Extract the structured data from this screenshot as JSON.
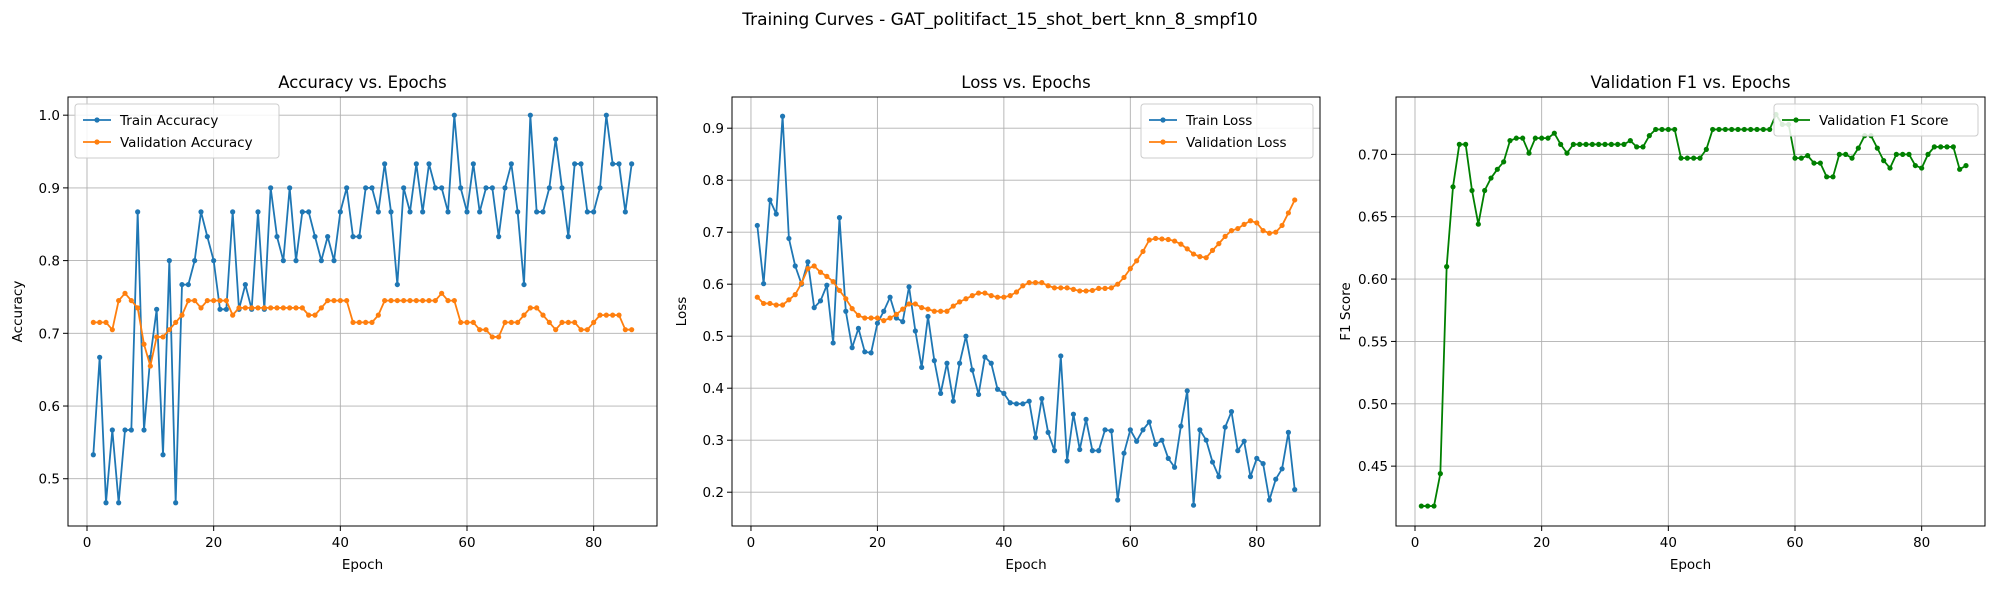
{
  "suptitle": "Training Curves - GAT_politifact_15_shot_bert_knn_8_smpf10",
  "colors": {
    "train": "#1f77b4",
    "validation": "#ff7f0e",
    "f1": "#008000"
  },
  "chart_data": [
    {
      "type": "line",
      "title": "Accuracy vs. Epochs",
      "xlabel": "Epoch",
      "ylabel": "Accuracy",
      "xlim": [
        -3,
        90
      ],
      "ylim": [
        0.435,
        1.025
      ],
      "xticks": [
        0,
        20,
        40,
        60,
        80
      ],
      "yticks": [
        0.5,
        0.6,
        0.7,
        0.8,
        0.9,
        1.0
      ],
      "ytick_labels": [
        "0.5",
        "0.6",
        "0.7",
        "0.8",
        "0.9",
        "1.0"
      ],
      "grid": true,
      "legend_position": "top-left",
      "series": [
        {
          "name": "Train Accuracy",
          "color": "#1f77b4",
          "values": [
            0.533,
            0.667,
            0.467,
            0.567,
            0.467,
            0.567,
            0.567,
            0.867,
            0.567,
            0.667,
            0.733,
            0.533,
            0.8,
            0.467,
            0.767,
            0.767,
            0.8,
            0.867,
            0.833,
            0.8,
            0.733,
            0.733,
            0.867,
            0.733,
            0.767,
            0.733,
            0.867,
            0.733,
            0.9,
            0.833,
            0.8,
            0.9,
            0.8,
            0.867,
            0.867,
            0.833,
            0.8,
            0.833,
            0.8,
            0.867,
            0.9,
            0.833,
            0.833,
            0.9,
            0.9,
            0.867,
            0.933,
            0.867,
            0.767,
            0.9,
            0.867,
            0.933,
            0.867,
            0.933,
            0.9,
            0.9,
            0.867,
            1.0,
            0.9,
            0.867,
            0.933,
            0.867,
            0.9,
            0.9,
            0.833,
            0.9,
            0.933,
            0.867,
            0.767,
            1.0,
            0.867,
            0.867,
            0.9,
            0.967,
            0.9,
            0.833,
            0.933,
            0.933,
            0.867,
            0.867,
            0.9,
            1.0,
            0.933,
            0.933,
            0.867,
            0.933
          ]
        },
        {
          "name": "Validation Accuracy",
          "color": "#ff7f0e",
          "values": [
            0.715,
            0.715,
            0.715,
            0.705,
            0.745,
            0.755,
            0.745,
            0.735,
            0.685,
            0.655,
            0.695,
            0.695,
            0.705,
            0.715,
            0.725,
            0.745,
            0.745,
            0.735,
            0.745,
            0.745,
            0.745,
            0.745,
            0.725,
            0.735,
            0.735,
            0.735,
            0.735,
            0.735,
            0.735,
            0.735,
            0.735,
            0.735,
            0.735,
            0.735,
            0.725,
            0.725,
            0.735,
            0.745,
            0.745,
            0.745,
            0.745,
            0.715,
            0.715,
            0.715,
            0.715,
            0.725,
            0.745,
            0.745,
            0.745,
            0.745,
            0.745,
            0.745,
            0.745,
            0.745,
            0.745,
            0.755,
            0.745,
            0.745,
            0.715,
            0.715,
            0.715,
            0.705,
            0.705,
            0.695,
            0.695,
            0.715,
            0.715,
            0.715,
            0.725,
            0.735,
            0.735,
            0.725,
            0.715,
            0.705,
            0.715,
            0.715,
            0.715,
            0.705,
            0.705,
            0.715,
            0.725,
            0.725,
            0.725,
            0.725,
            0.705,
            0.705
          ]
        }
      ]
    },
    {
      "type": "line",
      "title": "Loss vs. Epochs",
      "xlabel": "Epoch",
      "ylabel": "Loss",
      "xlim": [
        -3,
        90
      ],
      "ylim": [
        0.135,
        0.96
      ],
      "xticks": [
        0,
        20,
        40,
        60,
        80
      ],
      "yticks": [
        0.2,
        0.3,
        0.4,
        0.5,
        0.6,
        0.7,
        0.8,
        0.9
      ],
      "ytick_labels": [
        "0.2",
        "0.3",
        "0.4",
        "0.5",
        "0.6",
        "0.7",
        "0.8",
        "0.9"
      ],
      "grid": true,
      "legend_position": "top-right",
      "series": [
        {
          "name": "Train Loss",
          "color": "#1f77b4",
          "values": [
            0.713,
            0.601,
            0.762,
            0.735,
            0.923,
            0.688,
            0.635,
            0.6,
            0.643,
            0.555,
            0.568,
            0.598,
            0.487,
            0.728,
            0.548,
            0.478,
            0.515,
            0.47,
            0.468,
            0.525,
            0.548,
            0.575,
            0.535,
            0.528,
            0.595,
            0.51,
            0.44,
            0.538,
            0.453,
            0.39,
            0.448,
            0.375,
            0.448,
            0.5,
            0.435,
            0.388,
            0.46,
            0.448,
            0.398,
            0.39,
            0.372,
            0.37,
            0.37,
            0.375,
            0.305,
            0.38,
            0.315,
            0.28,
            0.462,
            0.26,
            0.35,
            0.282,
            0.34,
            0.28,
            0.28,
            0.32,
            0.318,
            0.185,
            0.275,
            0.32,
            0.298,
            0.32,
            0.335,
            0.292,
            0.3,
            0.265,
            0.248,
            0.327,
            0.395,
            0.175,
            0.32,
            0.3,
            0.258,
            0.23,
            0.325,
            0.355,
            0.28,
            0.298,
            0.23,
            0.265,
            0.255,
            0.185,
            0.225,
            0.245,
            0.315,
            0.205
          ]
        },
        {
          "name": "Validation Loss",
          "color": "#ff7f0e",
          "values": [
            0.575,
            0.563,
            0.563,
            0.56,
            0.56,
            0.57,
            0.58,
            0.602,
            0.63,
            0.635,
            0.623,
            0.615,
            0.605,
            0.588,
            0.572,
            0.553,
            0.54,
            0.535,
            0.535,
            0.535,
            0.53,
            0.535,
            0.542,
            0.552,
            0.562,
            0.562,
            0.555,
            0.552,
            0.548,
            0.548,
            0.548,
            0.558,
            0.566,
            0.572,
            0.578,
            0.583,
            0.583,
            0.578,
            0.575,
            0.575,
            0.578,
            0.585,
            0.597,
            0.603,
            0.603,
            0.603,
            0.597,
            0.593,
            0.593,
            0.593,
            0.59,
            0.587,
            0.587,
            0.588,
            0.592,
            0.592,
            0.593,
            0.6,
            0.613,
            0.63,
            0.645,
            0.663,
            0.685,
            0.688,
            0.687,
            0.686,
            0.683,
            0.677,
            0.668,
            0.658,
            0.653,
            0.651,
            0.665,
            0.678,
            0.692,
            0.703,
            0.707,
            0.715,
            0.722,
            0.718,
            0.703,
            0.698,
            0.7,
            0.713,
            0.737,
            0.762
          ]
        }
      ]
    },
    {
      "type": "line",
      "title": "Validation F1 vs. Epochs",
      "xlabel": "Epoch",
      "ylabel": "F1 Score",
      "xlim": [
        -3,
        90
      ],
      "ylim": [
        0.402,
        0.746
      ],
      "xticks": [
        0,
        20,
        40,
        60,
        80
      ],
      "yticks": [
        0.45,
        0.5,
        0.55,
        0.6,
        0.65,
        0.7
      ],
      "ytick_labels": [
        "0.45",
        "0.50",
        "0.55",
        "0.60",
        "0.65",
        "0.70"
      ],
      "grid": true,
      "legend_position": "top-right",
      "series": [
        {
          "name": "Validation F1 Score",
          "color": "#008000",
          "values": [
            0.418,
            0.418,
            0.418,
            0.444,
            0.61,
            0.674,
            0.708,
            0.708,
            0.671,
            0.644,
            0.671,
            0.681,
            0.688,
            0.694,
            0.711,
            0.713,
            0.713,
            0.701,
            0.713,
            0.713,
            0.713,
            0.717,
            0.708,
            0.701,
            0.708,
            0.708,
            0.708,
            0.708,
            0.708,
            0.708,
            0.708,
            0.708,
            0.708,
            0.711,
            0.706,
            0.706,
            0.715,
            0.72,
            0.72,
            0.72,
            0.72,
            0.697,
            0.697,
            0.697,
            0.697,
            0.704,
            0.72,
            0.72,
            0.72,
            0.72,
            0.72,
            0.72,
            0.72,
            0.72,
            0.72,
            0.72,
            0.732,
            0.724,
            0.724,
            0.697,
            0.697,
            0.699,
            0.693,
            0.693,
            0.682,
            0.682,
            0.7,
            0.7,
            0.697,
            0.705,
            0.715,
            0.715,
            0.705,
            0.695,
            0.689,
            0.7,
            0.7,
            0.7,
            0.691,
            0.689,
            0.7,
            0.706,
            0.706,
            0.706,
            0.706,
            0.688,
            0.691
          ]
        }
      ]
    }
  ]
}
